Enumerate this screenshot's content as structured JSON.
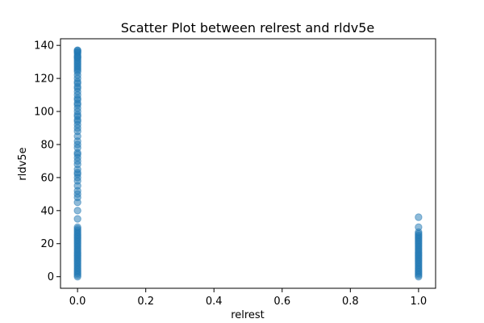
{
  "chart_data": {
    "type": "scatter",
    "title": "Scatter Plot between relrest and rldv5e",
    "xlabel": "relrest",
    "ylabel": "rldv5e",
    "xlim": [
      -0.05,
      1.05
    ],
    "ylim": [
      -7,
      144
    ],
    "xticks": [
      "0.0",
      "0.2",
      "0.4",
      "0.6",
      "0.8",
      "1.0"
    ],
    "yticks": [
      "0",
      "20",
      "40",
      "60",
      "80",
      "100",
      "120",
      "140"
    ],
    "grid": false,
    "color": "#1f77b4",
    "series": [
      {
        "x": [
          0,
          0,
          0,
          0,
          0,
          0,
          0,
          0,
          0,
          0,
          0,
          0,
          0,
          0,
          0,
          0,
          0,
          0,
          0,
          0,
          0,
          0,
          0,
          0,
          0,
          0,
          0,
          0,
          0,
          0,
          0,
          0,
          0,
          0,
          0,
          0,
          0,
          0,
          0,
          0,
          0,
          0,
          0,
          0,
          0,
          0,
          0,
          0,
          0,
          0,
          0,
          0,
          0,
          0,
          0,
          0,
          0,
          0,
          0,
          0,
          0,
          0,
          0,
          0,
          0,
          0,
          0,
          0,
          0,
          0,
          0,
          0,
          0,
          0,
          0,
          0,
          0,
          0,
          0,
          0,
          0,
          0,
          0,
          0,
          0,
          0,
          0,
          0,
          0,
          0,
          1,
          1,
          1,
          1,
          1,
          1,
          1,
          1,
          1,
          1,
          1,
          1,
          1,
          1,
          1,
          1,
          1,
          1,
          1,
          1,
          1,
          1,
          1,
          1,
          1,
          1,
          1,
          1,
          1,
          1
        ],
        "y": [
          0,
          1,
          2,
          3,
          4,
          5,
          6,
          7,
          8,
          9,
          10,
          11,
          12,
          13,
          14,
          15,
          16,
          17,
          18,
          19,
          20,
          21,
          22,
          23,
          24,
          25,
          26,
          27,
          28,
          29,
          30,
          35,
          40,
          45,
          48,
          50,
          52,
          55,
          58,
          60,
          62,
          63,
          65,
          68,
          70,
          72,
          74,
          75,
          78,
          80,
          82,
          85,
          88,
          90,
          92,
          94,
          95,
          97,
          98,
          100,
          102,
          104,
          105,
          107,
          108,
          110,
          112,
          114,
          115,
          117,
          118,
          120,
          122,
          124,
          125,
          126,
          127,
          128,
          129,
          130,
          131,
          132,
          133,
          134,
          135,
          136,
          137,
          137,
          136,
          133,
          0,
          1,
          2,
          3,
          4,
          5,
          6,
          7,
          8,
          9,
          10,
          11,
          12,
          13,
          14,
          15,
          16,
          17,
          18,
          19,
          20,
          21,
          22,
          23,
          24,
          25,
          26,
          27,
          30,
          36
        ]
      }
    ]
  }
}
